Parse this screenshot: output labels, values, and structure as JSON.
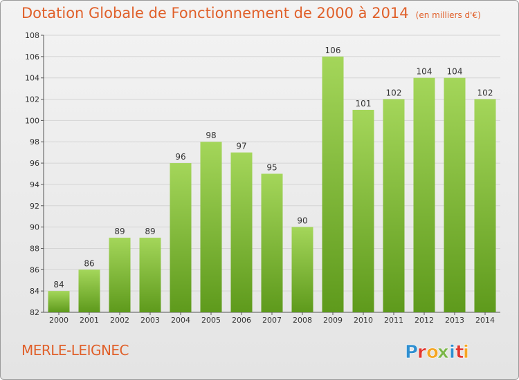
{
  "title": "Dotation Globale de Fonctionnement de 2000 à 2014",
  "unit_note": "(en milliers d'€)",
  "commune": "MERLE-LEIGNEC",
  "logo": {
    "letters": [
      "P",
      "r",
      "o",
      "x",
      "i",
      "t",
      "i"
    ],
    "colors": [
      "#2f8fd0",
      "#e2352e",
      "#f5a623",
      "#7ab648",
      "#2f8fd0",
      "#e2352e",
      "#f5a623"
    ]
  },
  "colors": {
    "bar_light": "#a4d65a",
    "bar_dark": "#5e9a1c",
    "title": "#e0602a",
    "grid": "#d4d4d4"
  },
  "chart_data": {
    "type": "bar",
    "categories": [
      "2000",
      "2001",
      "2002",
      "2003",
      "2004",
      "2005",
      "2006",
      "2007",
      "2008",
      "2009",
      "2010",
      "2011",
      "2012",
      "2013",
      "2014"
    ],
    "values": [
      84,
      86,
      89,
      89,
      96,
      98,
      97,
      95,
      90,
      106,
      101,
      102,
      104,
      104,
      102
    ],
    "ylim": [
      82,
      108
    ],
    "yticks": [
      82,
      84,
      86,
      88,
      90,
      92,
      94,
      96,
      98,
      100,
      102,
      104,
      106,
      108
    ],
    "grid": true,
    "xlabel": "",
    "ylabel": ""
  }
}
